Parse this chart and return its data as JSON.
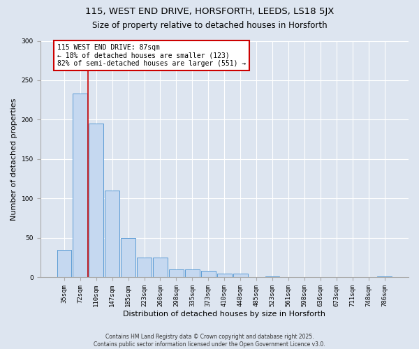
{
  "title": "115, WEST END DRIVE, HORSFORTH, LEEDS, LS18 5JX",
  "subtitle": "Size of property relative to detached houses in Horsforth",
  "xlabel": "Distribution of detached houses by size in Horsforth",
  "ylabel": "Number of detached properties",
  "bar_color": "#c5d8f0",
  "bar_edge_color": "#5b9bd5",
  "background_color": "#dde5f0",
  "grid_color": "#ffffff",
  "categories": [
    "35sqm",
    "72sqm",
    "110sqm",
    "147sqm",
    "185sqm",
    "223sqm",
    "260sqm",
    "298sqm",
    "335sqm",
    "373sqm",
    "410sqm",
    "448sqm",
    "485sqm",
    "523sqm",
    "561sqm",
    "598sqm",
    "636sqm",
    "673sqm",
    "711sqm",
    "748sqm",
    "786sqm"
  ],
  "values": [
    35,
    233,
    195,
    110,
    50,
    25,
    25,
    10,
    10,
    8,
    5,
    5,
    0,
    1,
    0,
    0,
    0,
    0,
    0,
    0,
    1
  ],
  "property_line_x": 1.5,
  "annotation_text": "115 WEST END DRIVE: 87sqm\n← 18% of detached houses are smaller (123)\n82% of semi-detached houses are larger (551) →",
  "annotation_box_color": "#ffffff",
  "annotation_box_edge": "#cc0000",
  "red_line_color": "#cc0000",
  "ylim": [
    0,
    300
  ],
  "yticks": [
    0,
    50,
    100,
    150,
    200,
    250,
    300
  ],
  "footer": "Contains HM Land Registry data © Crown copyright and database right 2025.\nContains public sector information licensed under the Open Government Licence v3.0.",
  "title_fontsize": 9.5,
  "subtitle_fontsize": 8.5,
  "xlabel_fontsize": 8,
  "ylabel_fontsize": 8,
  "tick_fontsize": 6.5,
  "annotation_fontsize": 7,
  "footer_fontsize": 5.5
}
